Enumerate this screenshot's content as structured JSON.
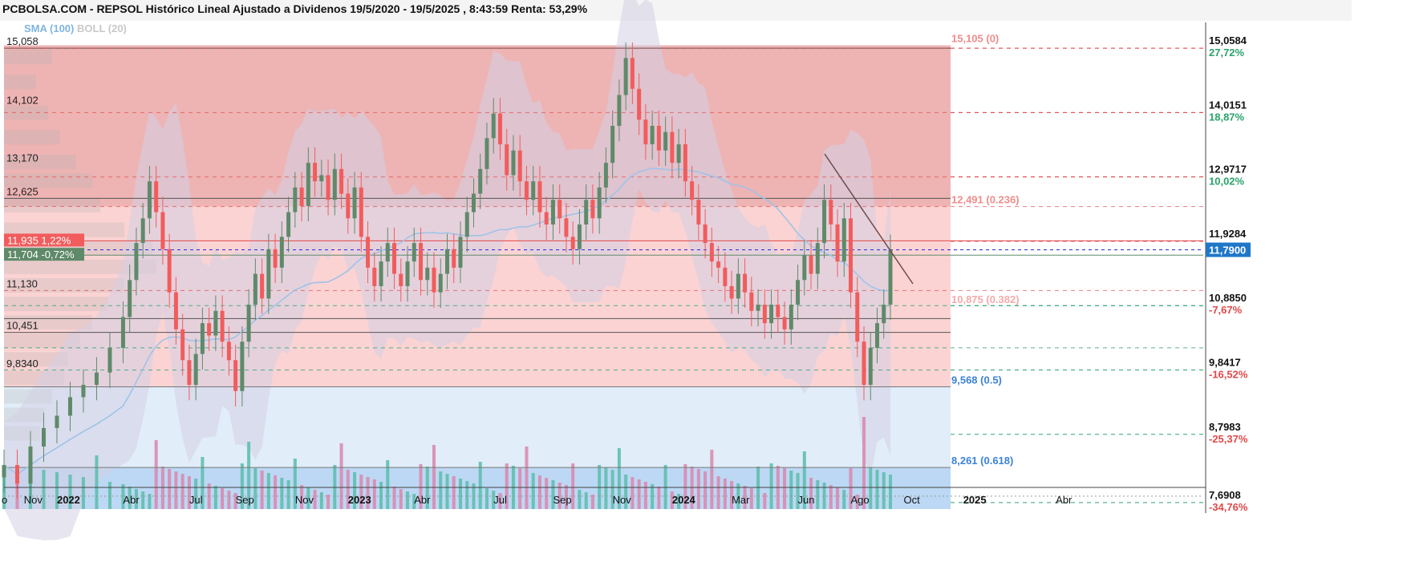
{
  "header": {
    "title": "PCBOLSA.COM - REPSOL Histórico Lineal Ajustado a Dividenos 19/5/2020 - 19/5/2025 , 8:43:59 Renta: 53,29%",
    "legend_sma": "SMA (100)",
    "legend_boll": "BOLL (20)"
  },
  "colors": {
    "up_candle": "#5f8a6a",
    "down_candle": "#f25c5c",
    "zone_top": "#eeb3b3",
    "zone_mid": "#fbd3d3",
    "zone_low": "#e1edf8",
    "zone_bottom": "#bcd8f4",
    "sma_line": "#9fc3e8",
    "boll_band": "#d3d0e3",
    "current_price_tag": "#1f77c8",
    "trendline": "#6b4b4b"
  },
  "left_levels": [
    {
      "label": "15,058",
      "value": 15.058
    },
    {
      "label": "14,102",
      "value": 14.102
    },
    {
      "label": "13,170",
      "value": 13.17
    },
    {
      "label": "12,625",
      "value": 12.625
    },
    {
      "label": "11,130",
      "value": 11.13
    },
    {
      "label": "10,451",
      "value": 10.451
    },
    {
      "label": "9,8340",
      "value": 9.834
    }
  ],
  "left_tags": [
    {
      "price": "11,935",
      "pct": "1,22%",
      "value": 11.935,
      "color": "#f25c5c"
    },
    {
      "price": "11,704",
      "pct": "-0,72%",
      "value": 11.704,
      "color": "#5f8a6a"
    }
  ],
  "fib_levels": [
    {
      "label": "15,105 (0)",
      "value": 15.105,
      "color": "#f08c8c"
    },
    {
      "label": "12,491 (0.236)",
      "value": 12.491,
      "color": "#f08c8c"
    },
    {
      "label": "10,875 (0.382)",
      "value": 10.875,
      "color": "#f5aaaa"
    },
    {
      "label": "9,568 (0.5)",
      "value": 9.568,
      "color": "#3b82d6"
    },
    {
      "label": "8,261 (0.618)",
      "value": 8.261,
      "color": "#3b82d6"
    }
  ],
  "right_levels": [
    {
      "price": "15,0584",
      "pct": "27,72%",
      "value": 15.058,
      "pct_color": "#2aa36b"
    },
    {
      "price": "14,0151",
      "pct": "18,87%",
      "value": 14.015,
      "pct_color": "#2aa36b"
    },
    {
      "price": "12,9717",
      "pct": "10,02%",
      "value": 12.972,
      "pct_color": "#2aa36b"
    },
    {
      "price": "11,9284",
      "pct": "",
      "value": 11.928,
      "pct_color": "#2aa36b"
    },
    {
      "price": "10,8850",
      "pct": "-7,67%",
      "value": 10.885,
      "pct_color": "#e04848"
    },
    {
      "price": "9,8417",
      "pct": "-16,52%",
      "value": 9.842,
      "pct_color": "#e04848"
    },
    {
      "price": "8,7983",
      "pct": "-25,37%",
      "value": 8.798,
      "pct_color": "#e04848"
    },
    {
      "price": "7,6908",
      "pct": "-34,76%",
      "value": 7.691,
      "pct_color": "#e04848"
    }
  ],
  "current_price": {
    "label": "11,7900",
    "value": 11.79
  },
  "x_axis": [
    {
      "label": "o",
      "t": 0,
      "bold": false
    },
    {
      "label": "Nov",
      "t": 3,
      "bold": false
    },
    {
      "label": "2022",
      "t": 8,
      "bold": true
    },
    {
      "label": "Abr",
      "t": 18,
      "bold": false
    },
    {
      "label": "Jul",
      "t": 28,
      "bold": false
    },
    {
      "label": "Sep",
      "t": 35,
      "bold": false
    },
    {
      "label": "Nov",
      "t": 44,
      "bold": false
    },
    {
      "label": "2023",
      "t": 52,
      "bold": true
    },
    {
      "label": "Abr",
      "t": 62,
      "bold": false
    },
    {
      "label": "Jul",
      "t": 74,
      "bold": false
    },
    {
      "label": "Sep",
      "t": 83,
      "bold": false
    },
    {
      "label": "Nov",
      "t": 92,
      "bold": false
    },
    {
      "label": "2024",
      "t": 101,
      "bold": true
    },
    {
      "label": "Mar",
      "t": 110,
      "bold": false
    },
    {
      "label": "Jun",
      "t": 120,
      "bold": false
    },
    {
      "label": "Ago",
      "t": 128,
      "bold": false
    },
    {
      "label": "Oct",
      "t": 136,
      "bold": false
    },
    {
      "label": "2025",
      "t": 145,
      "bold": true
    },
    {
      "label": "Abr",
      "t": 159,
      "bold": false
    }
  ],
  "chart_data": {
    "type": "candlestick",
    "title": "PCBOLSA.COM - REPSOL Histórico Lineal Ajustado a Dividenos 19/5/2020 - 19/5/2025 , 8:43:59 Renta: 53,29%",
    "ylim": [
      7.69,
      15.06
    ],
    "x_range": [
      0,
      164
    ],
    "series_close": [
      [
        0,
        8.3
      ],
      [
        2,
        8.0
      ],
      [
        4,
        8.6
      ],
      [
        6,
        8.9
      ],
      [
        8,
        9.1
      ],
      [
        10,
        9.4
      ],
      [
        12,
        9.6
      ],
      [
        14,
        9.8
      ],
      [
        16,
        10.2
      ],
      [
        18,
        10.7
      ],
      [
        19,
        11.3
      ],
      [
        20,
        11.9
      ],
      [
        21,
        12.3
      ],
      [
        22,
        12.9
      ],
      [
        23,
        12.4
      ],
      [
        24,
        11.8
      ],
      [
        25,
        11.1
      ],
      [
        26,
        10.5
      ],
      [
        27,
        10.0
      ],
      [
        28,
        9.6
      ],
      [
        29,
        10.1
      ],
      [
        30,
        10.6
      ],
      [
        31,
        10.4
      ],
      [
        32,
        10.8
      ],
      [
        33,
        10.3
      ],
      [
        34,
        10.0
      ],
      [
        35,
        9.5
      ],
      [
        36,
        10.3
      ],
      [
        37,
        10.9
      ],
      [
        38,
        11.4
      ],
      [
        39,
        11.0
      ],
      [
        40,
        11.8
      ],
      [
        41,
        11.5
      ],
      [
        42,
        12.0
      ],
      [
        43,
        12.4
      ],
      [
        44,
        12.8
      ],
      [
        45,
        12.5
      ],
      [
        46,
        13.2
      ],
      [
        47,
        12.9
      ],
      [
        48,
        13.0
      ],
      [
        49,
        12.6
      ],
      [
        50,
        13.1
      ],
      [
        51,
        12.7
      ],
      [
        52,
        12.3
      ],
      [
        53,
        12.8
      ],
      [
        54,
        12.0
      ],
      [
        55,
        11.5
      ],
      [
        56,
        11.2
      ],
      [
        57,
        11.6
      ],
      [
        58,
        11.9
      ],
      [
        59,
        11.4
      ],
      [
        60,
        11.2
      ],
      [
        61,
        11.6
      ],
      [
        62,
        11.9
      ],
      [
        63,
        11.3
      ],
      [
        64,
        11.5
      ],
      [
        65,
        11.1
      ],
      [
        66,
        11.4
      ],
      [
        67,
        11.8
      ],
      [
        68,
        11.5
      ],
      [
        69,
        12.0
      ],
      [
        70,
        12.4
      ],
      [
        71,
        12.7
      ],
      [
        72,
        13.1
      ],
      [
        73,
        13.6
      ],
      [
        74,
        14.0
      ],
      [
        75,
        13.5
      ],
      [
        76,
        13.0
      ],
      [
        77,
        13.4
      ],
      [
        78,
        12.9
      ],
      [
        79,
        12.6
      ],
      [
        80,
        12.9
      ],
      [
        81,
        12.4
      ],
      [
        82,
        12.2
      ],
      [
        83,
        12.6
      ],
      [
        84,
        12.3
      ],
      [
        85,
        12.0
      ],
      [
        86,
        11.8
      ],
      [
        87,
        12.2
      ],
      [
        88,
        12.6
      ],
      [
        89,
        12.3
      ],
      [
        90,
        12.8
      ],
      [
        91,
        13.2
      ],
      [
        92,
        13.8
      ],
      [
        93,
        14.3
      ],
      [
        94,
        14.9
      ],
      [
        95,
        14.4
      ],
      [
        96,
        13.9
      ],
      [
        97,
        13.5
      ],
      [
        98,
        13.8
      ],
      [
        99,
        13.4
      ],
      [
        100,
        13.7
      ],
      [
        101,
        13.2
      ],
      [
        102,
        13.5
      ],
      [
        103,
        12.9
      ],
      [
        104,
        12.6
      ],
      [
        105,
        12.2
      ],
      [
        106,
        11.9
      ],
      [
        107,
        11.6
      ],
      [
        108,
        11.5
      ],
      [
        109,
        11.2
      ],
      [
        110,
        11.0
      ],
      [
        111,
        11.4
      ],
      [
        112,
        11.1
      ],
      [
        113,
        10.8
      ],
      [
        114,
        10.9
      ],
      [
        115,
        10.6
      ],
      [
        116,
        10.9
      ],
      [
        117,
        10.7
      ],
      [
        118,
        10.5
      ],
      [
        119,
        10.9
      ],
      [
        120,
        11.3
      ],
      [
        121,
        11.7
      ],
      [
        122,
        11.4
      ],
      [
        123,
        11.9
      ],
      [
        124,
        12.6
      ],
      [
        125,
        12.2
      ],
      [
        126,
        11.6
      ],
      [
        127,
        12.3
      ],
      [
        128,
        11.1
      ],
      [
        129,
        10.3
      ],
      [
        130,
        9.6
      ],
      [
        131,
        10.2
      ],
      [
        132,
        10.6
      ],
      [
        133,
        10.9
      ],
      [
        134,
        11.79
      ]
    ],
    "annotations": [
      "15,105 (0)",
      "12,491 (0.236)",
      "10,875 (0.382)",
      "9,568 (0.5)",
      "8,261 (0.618)"
    ]
  }
}
